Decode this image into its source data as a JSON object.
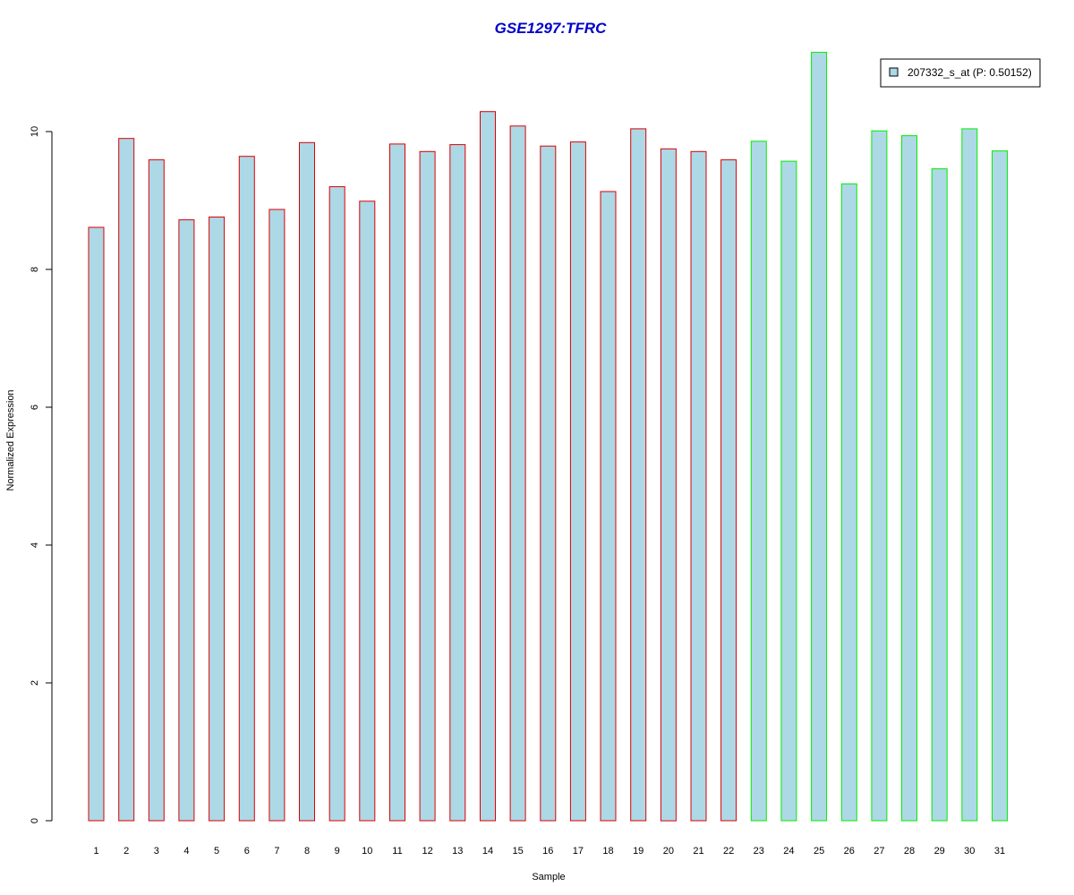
{
  "chart_data": {
    "type": "bar",
    "title": "GSE1297:TFRC",
    "xlabel": "Sample",
    "ylabel": "Normalized Expression",
    "ylim": [
      0,
      11.5
    ],
    "yticks": [
      0,
      2,
      4,
      6,
      8,
      10
    ],
    "categories": [
      "1",
      "2",
      "3",
      "4",
      "5",
      "6",
      "7",
      "8",
      "9",
      "10",
      "11",
      "12",
      "13",
      "14",
      "15",
      "16",
      "17",
      "18",
      "19",
      "20",
      "21",
      "22",
      "23",
      "24",
      "25",
      "26",
      "27",
      "28",
      "29",
      "30",
      "31"
    ],
    "values": [
      8.61,
      9.9,
      9.59,
      8.72,
      8.76,
      9.64,
      8.87,
      9.84,
      9.2,
      8.99,
      9.82,
      9.71,
      9.81,
      10.29,
      10.08,
      9.79,
      9.85,
      9.13,
      10.04,
      9.75,
      9.71,
      9.59,
      9.86,
      9.57,
      11.15,
      9.24,
      10.01,
      9.94,
      9.46,
      10.04,
      9.72
    ],
    "border_colors": [
      "#dd0000",
      "#dd0000",
      "#dd0000",
      "#dd0000",
      "#dd0000",
      "#dd0000",
      "#dd0000",
      "#dd0000",
      "#dd0000",
      "#dd0000",
      "#dd0000",
      "#dd0000",
      "#dd0000",
      "#dd0000",
      "#dd0000",
      "#dd0000",
      "#dd0000",
      "#dd0000",
      "#dd0000",
      "#dd0000",
      "#dd0000",
      "#dd0000",
      "#00ee00",
      "#00ee00",
      "#00ee00",
      "#00ee00",
      "#00ee00",
      "#00ee00",
      "#00ee00",
      "#00ee00",
      "#00ee00"
    ],
    "fill_color": "#add8e6",
    "title_color": "#0000cc",
    "legend": {
      "placement": "top-right",
      "entries": [
        "207332_s_at (P: 0.50152)"
      ]
    }
  }
}
